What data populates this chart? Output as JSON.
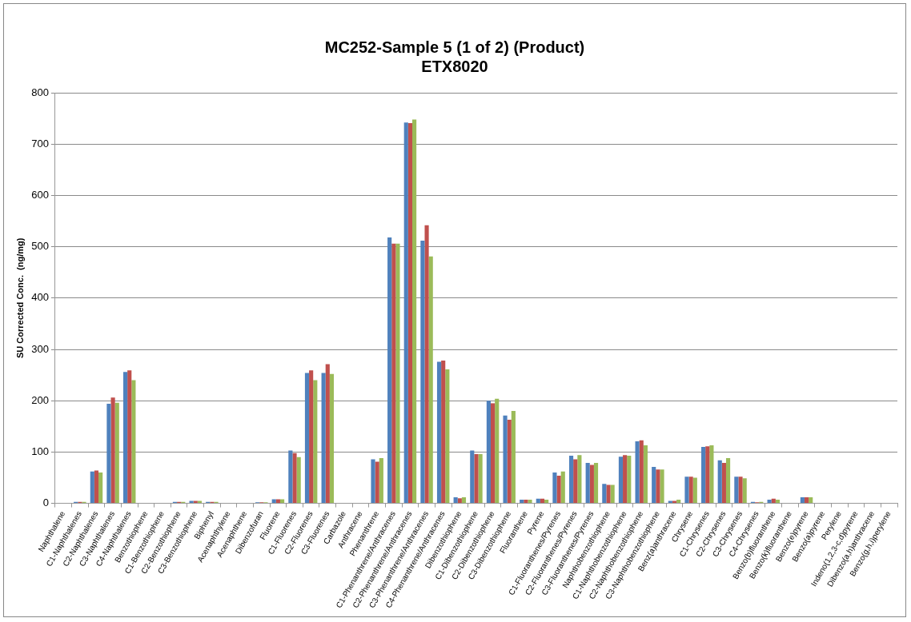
{
  "chart_data": {
    "type": "bar",
    "title": "MC252-Sample 5 (1 of 2) (Product)\nETX8020",
    "ylabel": "SU Corrected Conc.  (ng/mg)",
    "categories": [
      "Naphthalene",
      "C1-Naphthalenes",
      "C2-Naphthalenes",
      "C3-Naphthalenes",
      "C4-Naphthalenes",
      "Benzothiophene",
      "C1-Benzothiophene",
      "C2-Benzothiophene",
      "C3-Benzothiophene",
      "Biphenyl",
      "Acenaphthylene",
      "Acenaphthene",
      "Dibenzofuran",
      "Fluorene",
      "C1-Fluorenes",
      "C2-Fluorenes",
      "C3-Fluorenes",
      "Carbazole",
      "Anthracene",
      "Phenanthrene",
      "C1-Phenanthrene/Anthracenes",
      "C2-Phenanthrene/Anthracenes",
      "C3-Phenanthrene/Anthracenes",
      "C4-Phenanthrene/Anthracenes",
      "Dibenzothiophene",
      "C1-Dibenzothiophene",
      "C2-Dibenzothiophene",
      "C3-Dibenzothiophene",
      "Fluoranthene",
      "Pyrene",
      "C1-Fluoranthenes/Pyrenes",
      "C2-Fluoranthenes/Pyrenes",
      "C3-Fluoranthenes/Pyrenes",
      "Naphthobenzothiophene",
      "C1-Naphthobenzothiophene",
      "C2-Naphthobenzothiophene",
      "C3-Naphthobenzothiophene",
      "Benz(a)anthracene",
      "Chrysene",
      "C1-Chrysenes",
      "C2-Chrysenes",
      "C3-Chrysenes",
      "C4-Chrysenes",
      "Benzo(b)fluoranthene",
      "Benzo(k)fluoranthene",
      "Benzo(e)pyrene",
      "Benzo(a)pyrene",
      "Perylene",
      "Indeno(1,2,3-c,d)pyrene",
      "Dibenzo(a,h)anthracene",
      "Benzo(g,h,i)perylene"
    ],
    "series": [
      {
        "color": "#4f81bd",
        "values": [
          0,
          3,
          62,
          194,
          256,
          0,
          1,
          3,
          5,
          3,
          0,
          1,
          2,
          8,
          103,
          254,
          254,
          1,
          0,
          86,
          518,
          742,
          512,
          276,
          12,
          103,
          200,
          171,
          7,
          9,
          60,
          93,
          79,
          38,
          91,
          121,
          71,
          5,
          52,
          110,
          84,
          52,
          3,
          7,
          0,
          12,
          0,
          1,
          0,
          1,
          1
        ]
      },
      {
        "color": "#c0504d",
        "values": [
          0,
          3,
          64,
          206,
          259,
          0,
          1,
          3,
          5,
          3,
          0,
          1,
          2,
          8,
          98,
          259,
          271,
          1,
          0,
          81,
          506,
          741,
          542,
          278,
          10,
          96,
          195,
          163,
          7,
          9,
          54,
          86,
          75,
          36,
          94,
          123,
          66,
          5,
          52,
          111,
          79,
          52,
          2,
          9,
          0,
          12,
          0,
          1,
          0,
          1,
          1
        ]
      },
      {
        "color": "#9bbb59",
        "values": [
          0,
          3,
          60,
          196,
          240,
          0,
          1,
          3,
          5,
          3,
          0,
          1,
          2,
          8,
          90,
          240,
          252,
          1,
          0,
          88,
          506,
          748,
          481,
          261,
          12,
          96,
          204,
          180,
          7,
          7,
          62,
          94,
          79,
          36,
          93,
          113,
          66,
          7,
          50,
          113,
          88,
          49,
          3,
          7,
          0,
          12,
          0,
          1,
          0,
          1,
          1
        ]
      }
    ],
    "ylim": [
      0,
      800
    ],
    "yticks": [
      0,
      100,
      200,
      300,
      400,
      500,
      600,
      700,
      800
    ],
    "grid": "y",
    "legend": false
  }
}
